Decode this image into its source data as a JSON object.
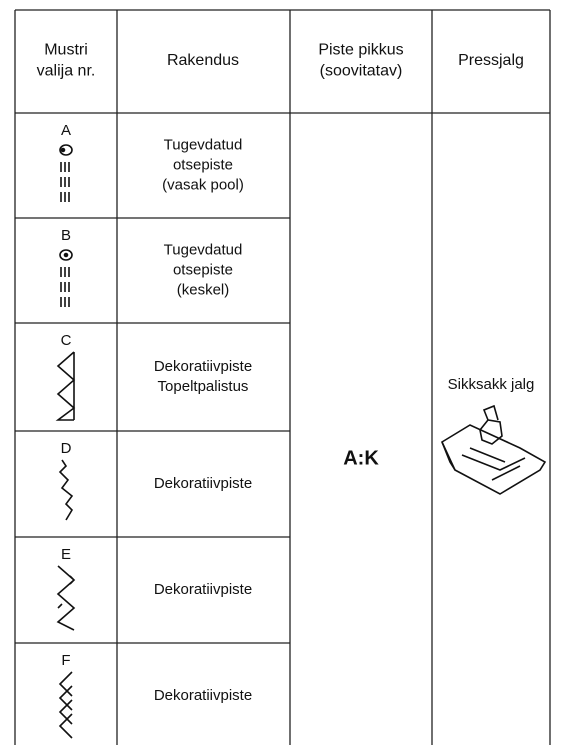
{
  "table": {
    "header": [
      [
        "Mustri",
        "valija nr."
      ],
      [
        "Rakendus"
      ],
      [
        "Piste pikkus",
        "(soovitatav)"
      ],
      [
        "Pressjalg"
      ]
    ],
    "rows": [
      {
        "pattern": "A",
        "application": [
          "Tugevdatud",
          "otsepiste",
          "(vasak pool)"
        ]
      },
      {
        "pattern": "B",
        "application": [
          "Tugevdatud",
          "otsepiste",
          "(keskel)"
        ]
      },
      {
        "pattern": "C",
        "application": [
          "Dekoratiivpiste",
          "Topeltpalistus"
        ]
      },
      {
        "pattern": "D",
        "application": [
          "Dekoratiivpiste"
        ]
      },
      {
        "pattern": "E",
        "application": [
          "Dekoratiivpiste"
        ]
      },
      {
        "pattern": "F",
        "application": [
          "Dekoratiivpiste"
        ]
      }
    ],
    "stitch_length": "A:K",
    "presser_foot": "Sikksakk jalg"
  }
}
